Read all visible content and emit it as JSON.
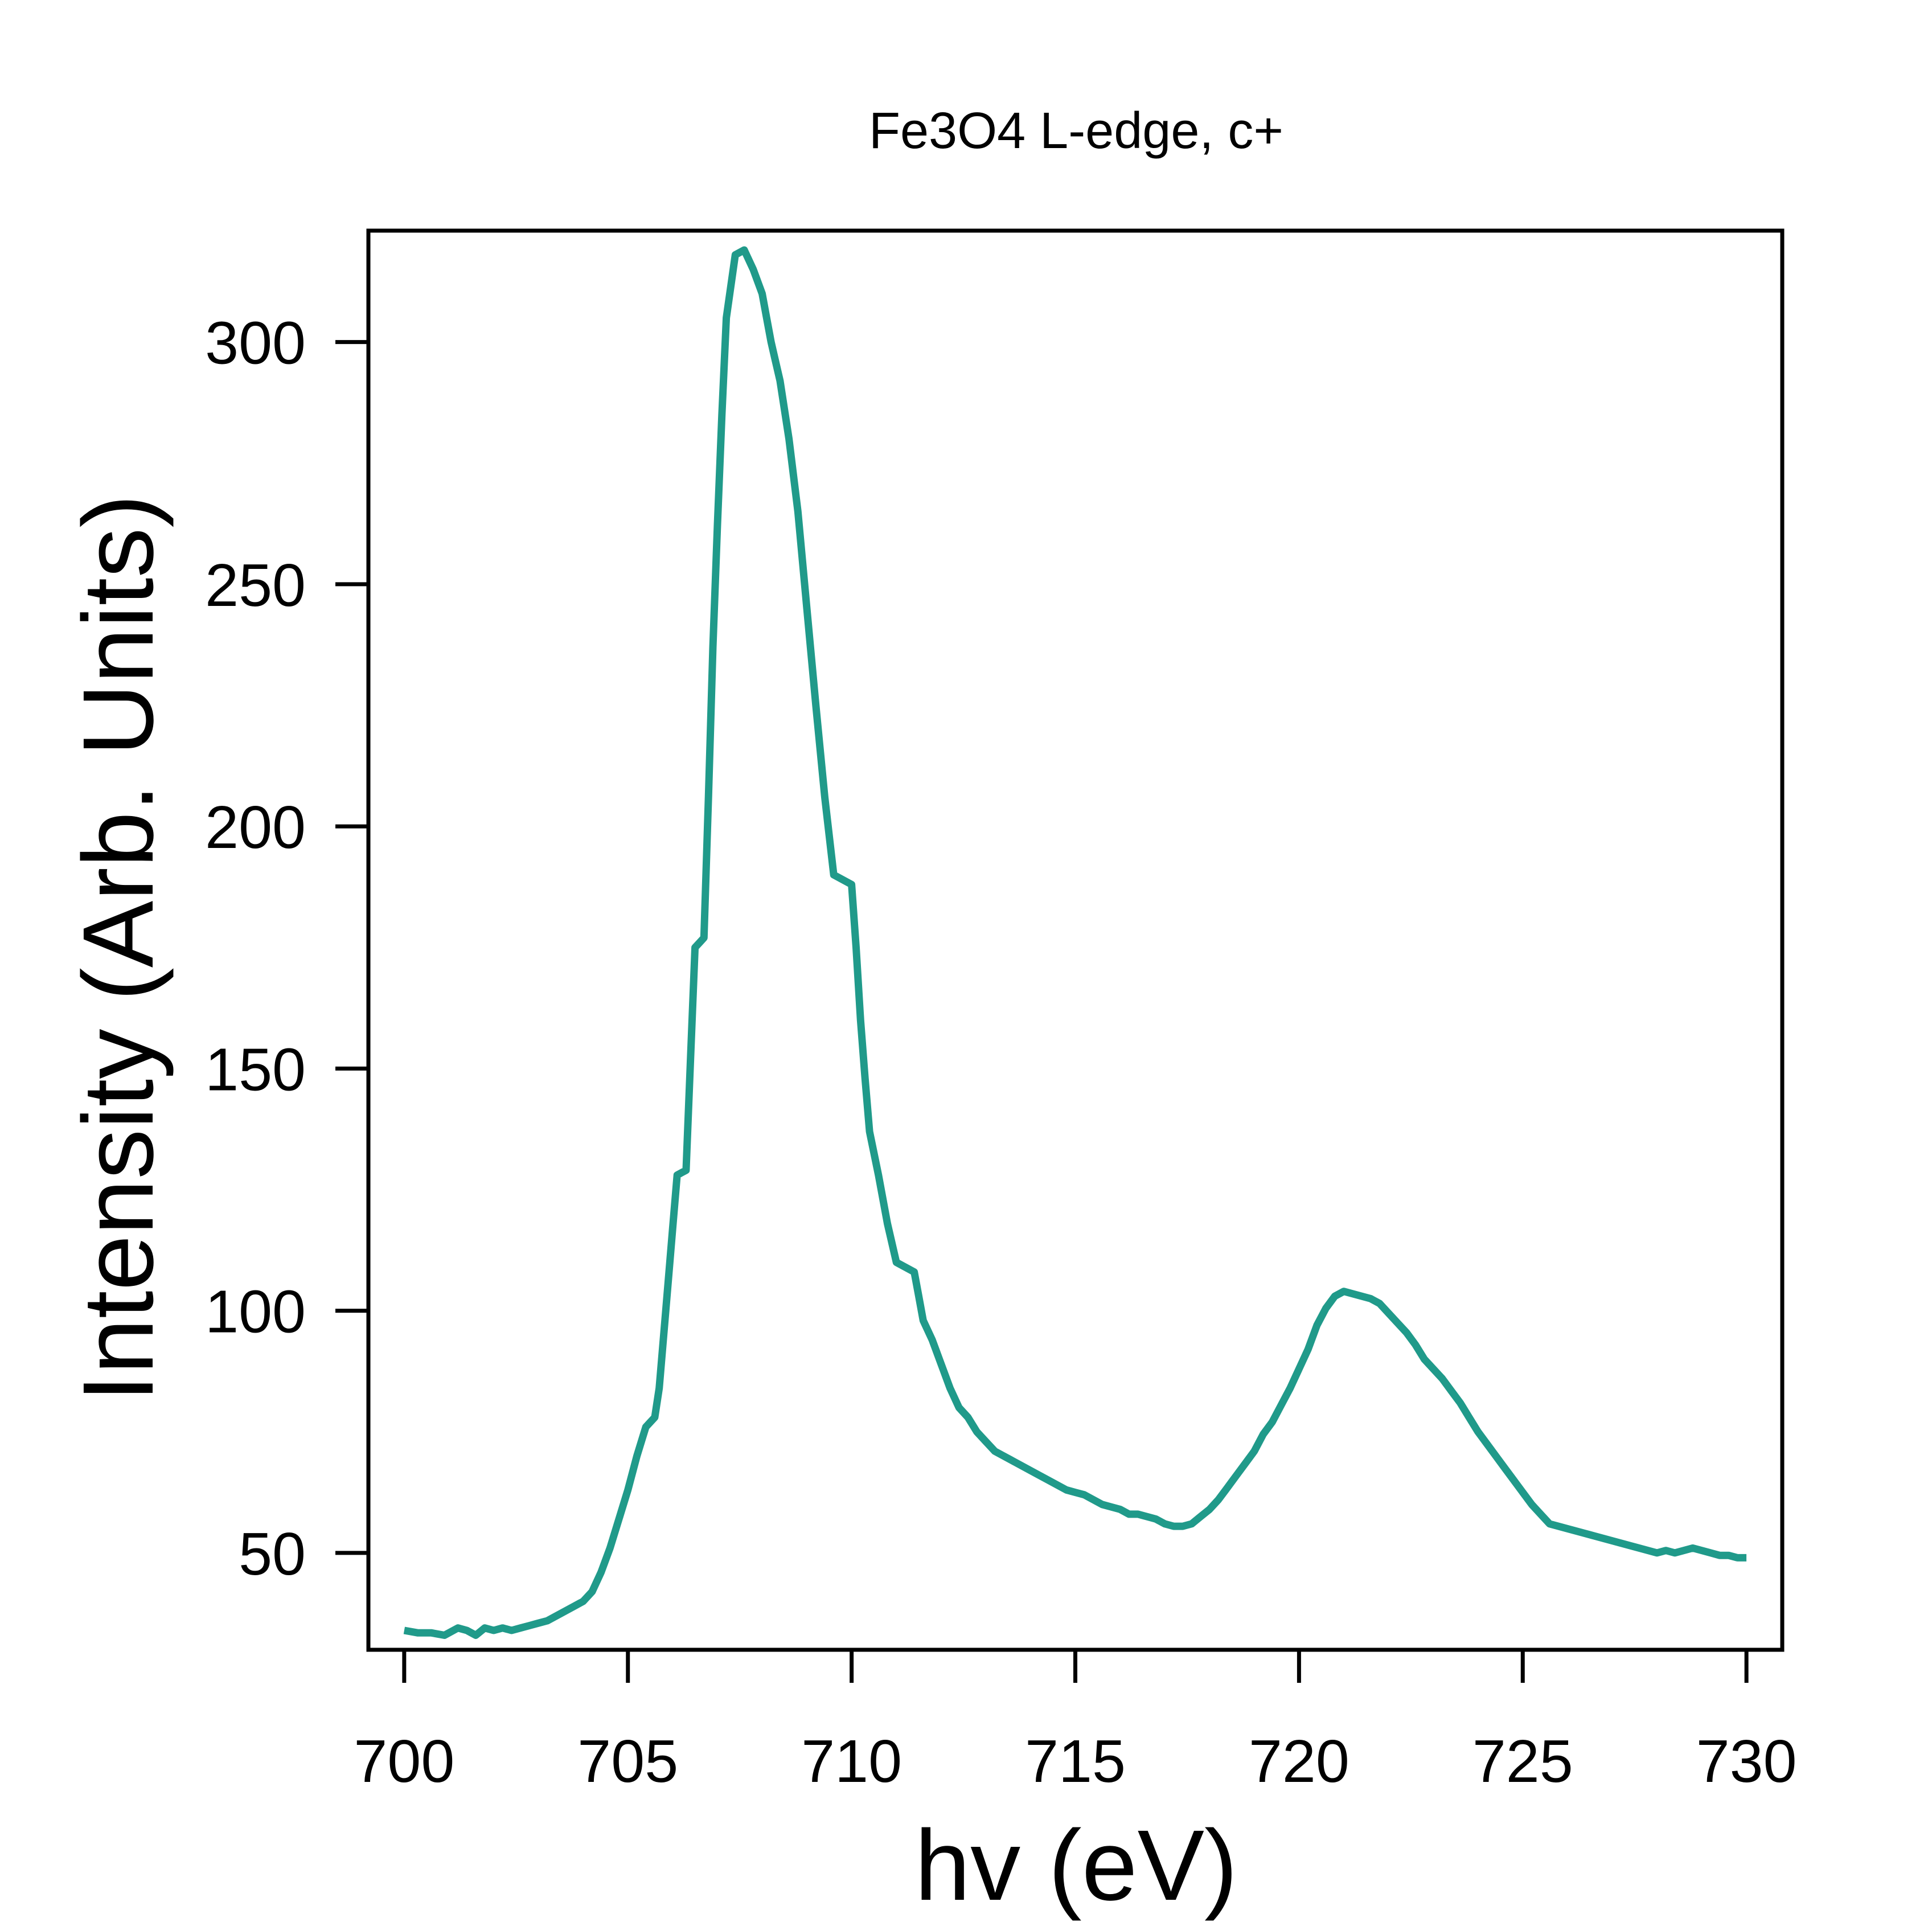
{
  "chart_data": {
    "type": "line",
    "title": "Fe3O4 L-edge, c+",
    "xlabel": "hv (eV)",
    "ylabel": "Intensity (Arb. Units)",
    "xlim": [
      699.2,
      730.8
    ],
    "ylim": [
      30,
      323
    ],
    "xticks": [
      700,
      705,
      710,
      715,
      720,
      725,
      730
    ],
    "yticks": [
      50,
      100,
      150,
      200,
      250,
      300
    ],
    "xtick_labels": [
      "700",
      "705",
      "710",
      "715",
      "720",
      "725",
      "730"
    ],
    "ytick_labels": [
      "50",
      "100",
      "150",
      "200",
      "250",
      "300"
    ],
    "grid": false,
    "legend": "none",
    "series": [
      {
        "color": "#209a8a",
        "x": [
          700.0,
          700.3,
          700.6,
          700.9,
          701.2,
          701.4,
          701.6,
          701.8,
          702.0,
          702.2,
          702.4,
          702.6,
          702.8,
          703.0,
          703.2,
          703.4,
          703.6,
          703.8,
          704.0,
          704.2,
          704.4,
          704.6,
          704.8,
          705.0,
          705.2,
          705.4,
          705.5,
          705.6,
          705.7,
          705.8,
          705.9,
          706.0,
          706.1,
          706.2,
          706.3,
          706.4,
          706.5,
          706.6,
          706.7,
          706.8,
          706.9,
          707.0,
          707.1,
          707.2,
          707.4,
          707.6,
          707.8,
          708.0,
          708.1,
          708.2,
          708.3,
          708.4,
          708.6,
          708.8,
          709.0,
          709.2,
          709.4,
          709.6,
          709.8,
          710.0,
          710.1,
          710.2,
          710.3,
          710.4,
          710.6,
          710.8,
          711.0,
          711.2,
          711.4,
          711.5,
          711.6,
          711.7,
          711.8,
          712.0,
          712.2,
          712.4,
          712.6,
          712.8,
          713.0,
          713.2,
          713.4,
          713.6,
          713.8,
          714.0,
          714.2,
          714.4,
          714.6,
          714.8,
          715.0,
          715.2,
          715.4,
          715.6,
          715.8,
          716.0,
          716.2,
          716.4,
          716.6,
          716.8,
          717.0,
          717.2,
          717.4,
          717.6,
          717.8,
          718.0,
          718.2,
          718.4,
          718.6,
          718.8,
          719.0,
          719.2,
          719.4,
          719.6,
          719.8,
          720.0,
          720.2,
          720.4,
          720.6,
          720.8,
          721.0,
          721.2,
          721.4,
          721.6,
          721.8,
          722.0,
          722.2,
          722.4,
          722.6,
          722.8,
          723.0,
          723.2,
          723.4,
          723.6,
          723.8,
          724.0,
          724.2,
          724.4,
          724.6,
          724.8,
          725.0,
          725.2,
          725.4,
          725.6,
          725.8,
          726.0,
          726.2,
          726.4,
          726.6,
          726.8,
          727.0,
          727.2,
          727.4,
          727.6,
          727.8,
          728.0,
          728.2,
          728.4,
          728.6,
          728.8,
          729.0,
          729.2,
          729.4,
          729.6,
          729.8,
          730.0
        ],
        "y": [
          34,
          33.5,
          33.5,
          33,
          34.5,
          34,
          33,
          34.5,
          34,
          34.5,
          34,
          34.5,
          35,
          35.5,
          36,
          37,
          38,
          39,
          40,
          42,
          46,
          51,
          57,
          63,
          70,
          76,
          77,
          78,
          84,
          95,
          106,
          117,
          128,
          128.5,
          129,
          152,
          175,
          176,
          177,
          206,
          237,
          262,
          285,
          305,
          318,
          319,
          315,
          310,
          305,
          300,
          296,
          292,
          280,
          265,
          245,
          225,
          206,
          190,
          189,
          188,
          175,
          160,
          148,
          137,
          128,
          118,
          110,
          109,
          108,
          103,
          98,
          96,
          94,
          89,
          84,
          80,
          78,
          75,
          73,
          71,
          70,
          69,
          68,
          67,
          66,
          65,
          64,
          63,
          62.5,
          62,
          61,
          60,
          59.5,
          59,
          58,
          58,
          57.5,
          57,
          56,
          55.5,
          55.5,
          56,
          57.5,
          59,
          61,
          63.5,
          66,
          68.5,
          71,
          74.5,
          77,
          80.5,
          84,
          88,
          92,
          97,
          100.5,
          103,
          104,
          103.5,
          103,
          102.5,
          101.5,
          99.5,
          97.5,
          95.5,
          93,
          90,
          88,
          86,
          83.5,
          81,
          78,
          75,
          72.5,
          70,
          67.5,
          65,
          62.5,
          60,
          58,
          56,
          55.5,
          55,
          54.5,
          54,
          53.5,
          53,
          52.5,
          52,
          51.5,
          51,
          50.5,
          50,
          50.5,
          50,
          50.5,
          51,
          50.5,
          50,
          49.5,
          49.5,
          49,
          49
        ]
      }
    ]
  }
}
